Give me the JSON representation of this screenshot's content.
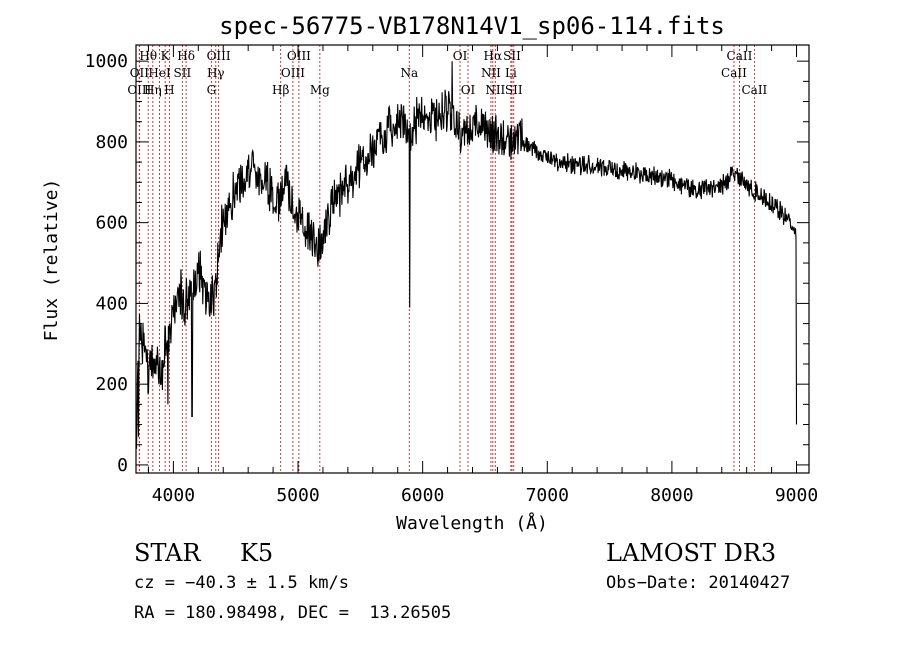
{
  "chart_data": {
    "type": "line",
    "title": "spec-56775-VB178N14V1_sp06-114.fits",
    "xlabel": "Wavelength (Å)",
    "ylabel": "Flux (relative)",
    "xlim": [
      3700,
      9100
    ],
    "ylim": [
      -20,
      1040
    ],
    "x_ticks": [
      4000,
      5000,
      6000,
      7000,
      8000,
      9000
    ],
    "y_ticks": [
      0,
      200,
      400,
      600,
      800,
      1000
    ],
    "x_tick_labels": [
      "4000",
      "5000",
      "6000",
      "7000",
      "8000",
      "9000"
    ],
    "y_tick_labels": [
      "0",
      "200",
      "400",
      "600",
      "800",
      "1000"
    ],
    "spectrum_anchors": [
      [
        3700,
        60
      ],
      [
        3720,
        320
      ],
      [
        3760,
        300
      ],
      [
        3800,
        230
      ],
      [
        3850,
        260
      ],
      [
        3900,
        220
      ],
      [
        3950,
        330
      ],
      [
        4000,
        360
      ],
      [
        4050,
        420
      ],
      [
        4100,
        400
      ],
      [
        4150,
        450
      ],
      [
        4200,
        470
      ],
      [
        4250,
        440
      ],
      [
        4300,
        400
      ],
      [
        4330,
        420
      ],
      [
        4380,
        590
      ],
      [
        4450,
        650
      ],
      [
        4550,
        710
      ],
      [
        4650,
        730
      ],
      [
        4750,
        700
      ],
      [
        4850,
        650
      ],
      [
        4900,
        700
      ],
      [
        4950,
        650
      ],
      [
        5050,
        600
      ],
      [
        5150,
        530
      ],
      [
        5200,
        560
      ],
      [
        5300,
        660
      ],
      [
        5450,
        720
      ],
      [
        5600,
        780
      ],
      [
        5700,
        820
      ],
      [
        5800,
        860
      ],
      [
        5900,
        830
      ],
      [
        6000,
        870
      ],
      [
        6100,
        860
      ],
      [
        6200,
        880
      ],
      [
        6300,
        820
      ],
      [
        6400,
        840
      ],
      [
        6500,
        830
      ],
      [
        6600,
        810
      ],
      [
        6700,
        810
      ],
      [
        6800,
        800
      ],
      [
        7000,
        760
      ],
      [
        7200,
        745
      ],
      [
        7500,
        735
      ],
      [
        7800,
        720
      ],
      [
        8000,
        705
      ],
      [
        8200,
        680
      ],
      [
        8400,
        690
      ],
      [
        8500,
        730
      ],
      [
        8600,
        690
      ],
      [
        8800,
        650
      ],
      [
        8950,
        600
      ],
      [
        9000,
        570
      ]
    ],
    "spectrum_spikes": [
      [
        5895,
        390
      ],
      [
        3720,
        70
      ],
      [
        3705,
        40
      ],
      [
        9000,
        100
      ],
      [
        6235,
        1000
      ],
      [
        4150,
        120
      ],
      [
        3955,
        150
      ]
    ],
    "line_markers": [
      {
        "label": "Hθ",
        "wave": 3798,
        "row": 0
      },
      {
        "label": "K",
        "wave": 3934,
        "row": 0
      },
      {
        "label": "Hδ",
        "wave": 4102,
        "row": 0
      },
      {
        "label": "OIII",
        "wave": 4363,
        "row": 0
      },
      {
        "label": "OIII",
        "wave": 5007,
        "row": 0
      },
      {
        "label": "OI",
        "wave": 6300,
        "row": 0
      },
      {
        "label": "Hα",
        "wave": 6563,
        "row": 0
      },
      {
        "label": "SII",
        "wave": 6717,
        "row": 0
      },
      {
        "label": "CaII",
        "wave": 8542,
        "row": 0
      },
      {
        "label": "OII",
        "wave": 3727,
        "row": 1
      },
      {
        "label": "HeI",
        "wave": 3889,
        "row": 1
      },
      {
        "label": "SII",
        "wave": 4072,
        "row": 1
      },
      {
        "label": "Hγ",
        "wave": 4340,
        "row": 1
      },
      {
        "label": "OIII",
        "wave": 4959,
        "row": 1
      },
      {
        "label": "Na",
        "wave": 5893,
        "row": 1
      },
      {
        "label": "NII",
        "wave": 6548,
        "row": 1
      },
      {
        "label": "Li",
        "wave": 6708,
        "row": 1
      },
      {
        "label": "CaII",
        "wave": 8498,
        "row": 1
      },
      {
        "label": "OIII",
        "wave": 3727,
        "row": 2
      },
      {
        "label": "Hη",
        "wave": 3835,
        "row": 2
      },
      {
        "label": "H",
        "wave": 3968,
        "row": 2
      },
      {
        "label": "G",
        "wave": 4305,
        "row": 2
      },
      {
        "label": "Hβ",
        "wave": 4861,
        "row": 2
      },
      {
        "label": "Mg",
        "wave": 5175,
        "row": 2
      },
      {
        "label": "OI",
        "wave": 6364,
        "row": 2
      },
      {
        "label": "NII",
        "wave": 6583,
        "row": 2
      },
      {
        "label": "SII",
        "wave": 6731,
        "row": 2
      },
      {
        "label": "CaII",
        "wave": 8662,
        "row": 2
      }
    ]
  },
  "info": {
    "class": "STAR",
    "subclass": "K5",
    "survey": "LAMOST DR3",
    "cz": "cz = −40.3 ± 1.5 km/s",
    "obs_date": "Obs−Date: 20140427",
    "coords": "RA = 180.98498, DEC =  13.26505"
  },
  "colors": {
    "spectrum": "#000000",
    "marker": "#cc2222",
    "axis": "#000000"
  }
}
